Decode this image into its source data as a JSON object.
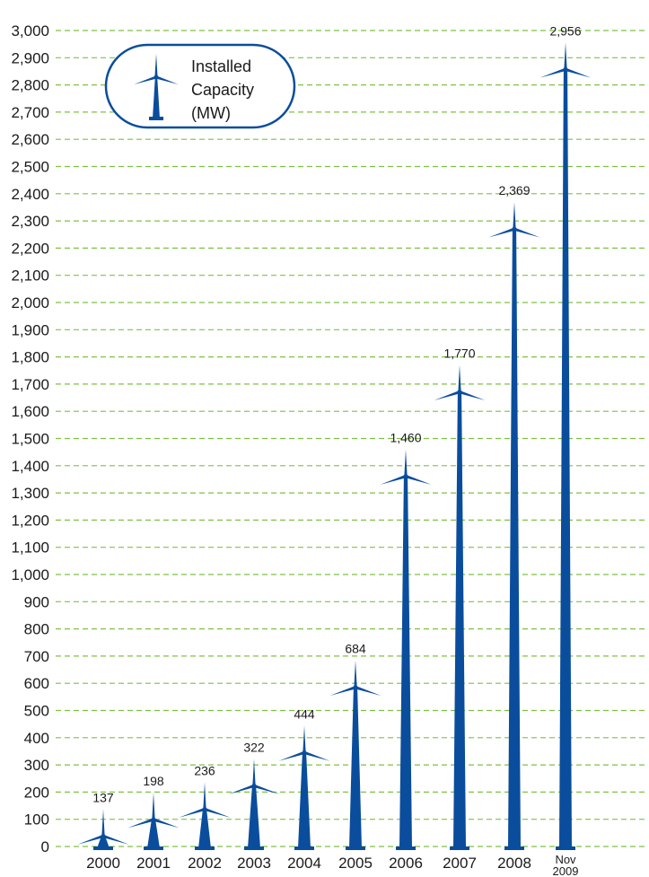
{
  "chart_data": {
    "type": "bar",
    "categories": [
      "2000",
      "2001",
      "2002",
      "2003",
      "2004",
      "2005",
      "2006",
      "2007",
      "2008",
      "Nov 2009"
    ],
    "values": [
      137,
      198,
      236,
      322,
      444,
      684,
      1460,
      1770,
      2369,
      2956
    ],
    "value_labels": [
      "137",
      "198",
      "236",
      "322",
      "444",
      "684",
      "1,460",
      "1,770",
      "2,369",
      "2,956"
    ],
    "ylim": [
      0,
      3000
    ],
    "yticks": [
      0,
      100,
      200,
      300,
      400,
      500,
      600,
      700,
      800,
      900,
      1000,
      1100,
      1200,
      1300,
      1400,
      1500,
      1600,
      1700,
      1800,
      1900,
      2000,
      2100,
      2200,
      2300,
      2400,
      2500,
      2600,
      2700,
      2800,
      2900,
      3000
    ],
    "ytick_labels": [
      "0",
      "100",
      "200",
      "300",
      "400",
      "500",
      "600",
      "700",
      "800",
      "900",
      "1,000",
      "1,100",
      "1,200",
      "1,300",
      "1,400",
      "1,500",
      "1,600",
      "1,700",
      "1,800",
      "1,900",
      "2,000",
      "2,100",
      "2,200",
      "2,300",
      "2,400",
      "2,500",
      "2,600",
      "2,700",
      "2,800",
      "2,900",
      "3,000"
    ],
    "grid": true,
    "legend": {
      "label_lines": [
        "Installed",
        "Capacity",
        "(MW)"
      ],
      "position": "top-left"
    },
    "mark_style": "wind-turbine",
    "colors": {
      "turbine": "#0a4d9c",
      "grid": "#7fc241",
      "legend_border": "#0a4d9c",
      "text": "#1a1a1a"
    }
  }
}
